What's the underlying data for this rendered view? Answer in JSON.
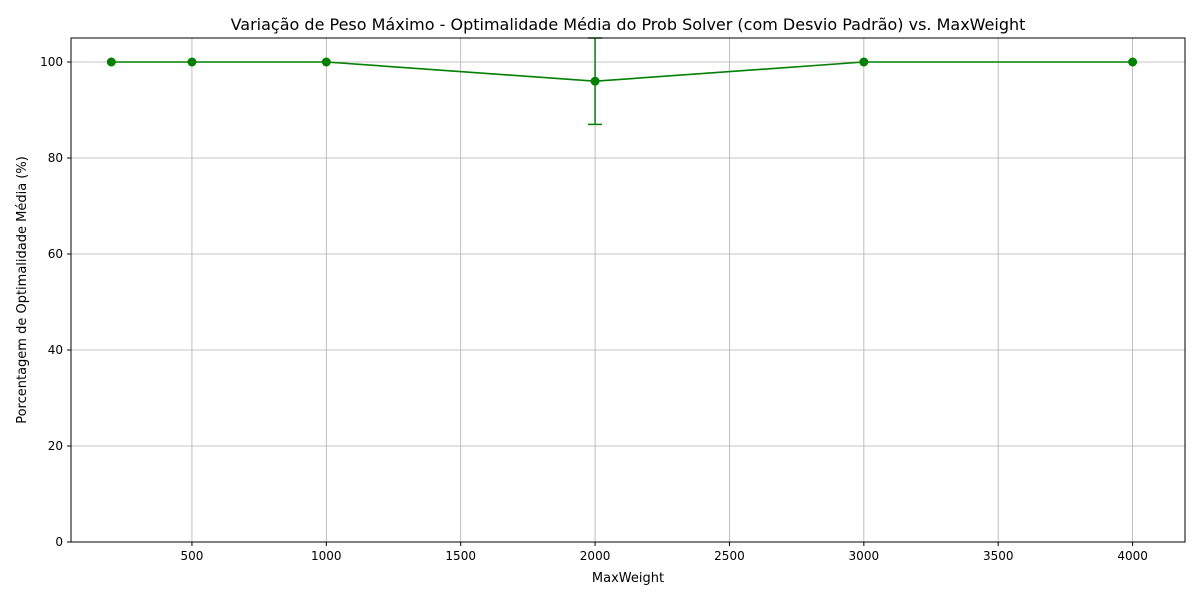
{
  "chart_data": {
    "type": "line",
    "title": "Variação de Peso Máximo - Optimalidade Média do Prob Solver (com Desvio Padrão) vs. MaxWeight",
    "xlabel": "MaxWeight",
    "ylabel": "Porcentagem de Optimalidade Média (%)",
    "xlim": [
      50,
      4195
    ],
    "ylim": [
      0,
      105
    ],
    "x_ticks": [
      500,
      1000,
      1500,
      2000,
      2500,
      3000,
      3500,
      4000
    ],
    "y_ticks": [
      0,
      20,
      40,
      60,
      80,
      100
    ],
    "grid": true,
    "series": [
      {
        "x": [
          200,
          500,
          1000,
          2000,
          3000,
          4000
        ],
        "y": [
          100,
          100,
          100,
          96,
          100,
          100
        ],
        "yerr": [
          0,
          0,
          0,
          9,
          0,
          0
        ],
        "color": "#008000",
        "marker": "circle"
      }
    ]
  }
}
